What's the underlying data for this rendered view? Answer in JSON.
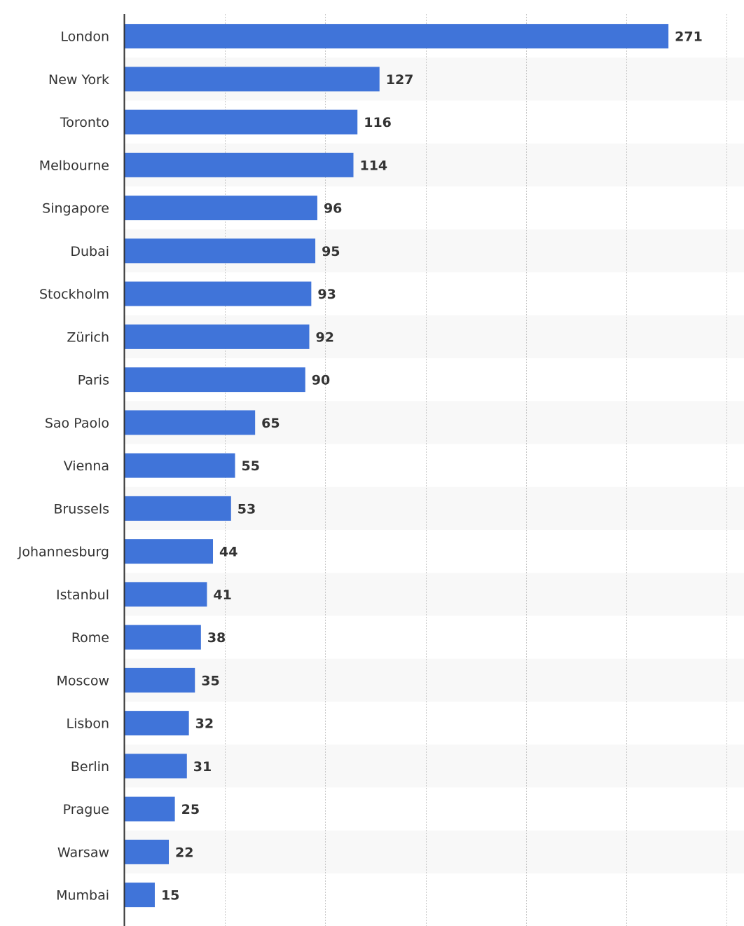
{
  "colors": {
    "bar": "#4074d9",
    "stripe": "#f8f8f8",
    "grid": "#c8c8c8",
    "axis": "#333333",
    "text": "#333333"
  },
  "chart_data": {
    "type": "bar",
    "orientation": "horizontal",
    "categories": [
      "London",
      "New York",
      "Toronto",
      "Melbourne",
      "Singapore",
      "Dubai",
      "Stockholm",
      "Zürich",
      "Paris",
      "Sao Paolo",
      "Vienna",
      "Brussels",
      "Johannesburg",
      "Istanbul",
      "Rome",
      "Moscow",
      "Lisbon",
      "Berlin",
      "Prague",
      "Warsaw",
      "Mumbai"
    ],
    "values": [
      271,
      127,
      116,
      114,
      96,
      95,
      93,
      92,
      90,
      65,
      55,
      53,
      44,
      41,
      38,
      35,
      32,
      31,
      25,
      22,
      15
    ],
    "xlim": [
      0,
      300
    ],
    "grid": true,
    "gridlines_at": [
      50,
      100,
      150,
      200,
      250,
      300
    ],
    "data_labels": true,
    "legend": false
  }
}
